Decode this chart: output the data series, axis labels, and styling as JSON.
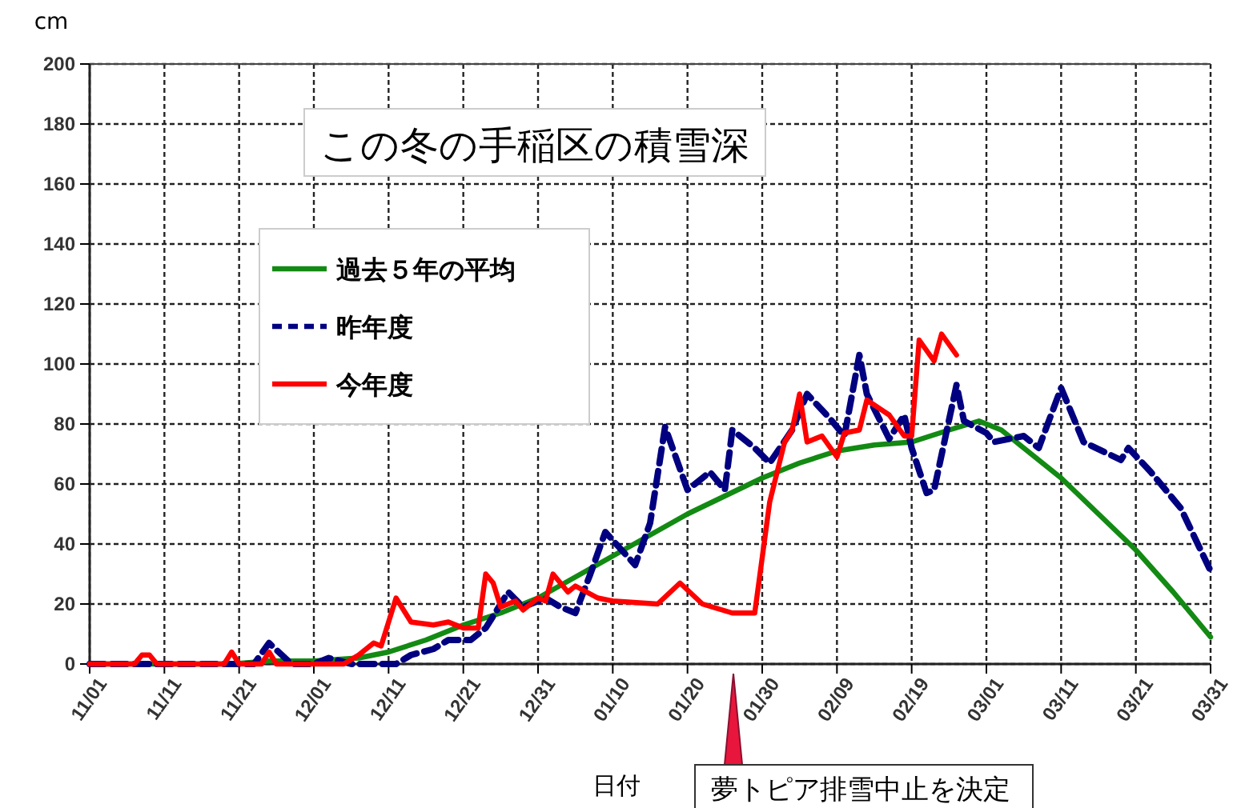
{
  "chart_data": {
    "type": "line",
    "title": "この冬の手稲区の積雪深",
    "xlabel": "日付",
    "ylabel": "cm",
    "annotations": [
      "夢トピア排雪中止を決定"
    ],
    "categories": [
      "11/01",
      null,
      null,
      null,
      null,
      null,
      null,
      null,
      null,
      null,
      "11/11",
      null,
      null,
      null,
      null,
      null,
      null,
      null,
      null,
      null,
      "11/21",
      null,
      null,
      null,
      null,
      null,
      null,
      null,
      null,
      null,
      "12/01",
      null,
      null,
      null,
      null,
      null,
      null,
      null,
      null,
      null,
      "12/11",
      null,
      null,
      null,
      null,
      null,
      null,
      null,
      null,
      null,
      "12/21",
      null,
      null,
      null,
      null,
      null,
      null,
      null,
      null,
      null,
      "12/31",
      null,
      null,
      null,
      null,
      null,
      null,
      null,
      null,
      null,
      "01/10",
      null,
      null,
      null,
      null,
      null,
      null,
      null,
      null,
      null,
      "01/20",
      null,
      null,
      null,
      null,
      null,
      null,
      null,
      null,
      null,
      "01/30",
      null,
      null,
      null,
      null,
      null,
      null,
      null,
      null,
      null,
      "02/09",
      null,
      null,
      null,
      null,
      null,
      null,
      null,
      null,
      null,
      "02/19",
      null,
      null,
      null,
      null,
      null,
      null,
      null,
      null,
      null,
      "03/01",
      null,
      null,
      null,
      null,
      null,
      null,
      null,
      null,
      null,
      "03/11",
      null,
      null,
      null,
      null,
      null,
      null,
      null,
      null,
      null,
      "03/21",
      null,
      null,
      null,
      null,
      null,
      null,
      null,
      null,
      null,
      "03/31"
    ],
    "ylim": [
      0,
      200
    ],
    "yticks": [
      0,
      20,
      40,
      60,
      80,
      100,
      120,
      140,
      160,
      180,
      200
    ],
    "grid": true,
    "legend": "top left",
    "series": [
      {
        "name": "過去５年の平均",
        "color": "#138a13",
        "line_style": "solid",
        "values": [
          0,
          null,
          null,
          null,
          null,
          null,
          null,
          null,
          null,
          null,
          null,
          null,
          null,
          null,
          null,
          null,
          null,
          null,
          null,
          0,
          null,
          null,
          null,
          null,
          1,
          null,
          null,
          null,
          null,
          null,
          1,
          null,
          null,
          null,
          null,
          null,
          2,
          null,
          null,
          null,
          4,
          null,
          null,
          null,
          null,
          8,
          null,
          null,
          null,
          null,
          13,
          null,
          null,
          null,
          null,
          17,
          null,
          null,
          null,
          null,
          22,
          null,
          null,
          null,
          null,
          29,
          null,
          null,
          null,
          null,
          36,
          null,
          null,
          null,
          null,
          43,
          null,
          null,
          null,
          null,
          50,
          null,
          null,
          null,
          null,
          56,
          null,
          null,
          null,
          null,
          62,
          null,
          null,
          null,
          null,
          67,
          null,
          null,
          null,
          null,
          71,
          null,
          null,
          null,
          null,
          73,
          null,
          null,
          null,
          null,
          74,
          null,
          null,
          null,
          null,
          78,
          null,
          null,
          null,
          81,
          null,
          null,
          78,
          null,
          null,
          72,
          null,
          null,
          null,
          null,
          62,
          null,
          null,
          null,
          null,
          50,
          null,
          null,
          null,
          null,
          38,
          null,
          null,
          null,
          null,
          24,
          null,
          null,
          null,
          null,
          9
        ]
      },
      {
        "name": "昨年度",
        "color": "#000080",
        "line_style": "dashed",
        "values": [
          0,
          null,
          null,
          null,
          null,
          null,
          null,
          null,
          null,
          null,
          null,
          null,
          null,
          null,
          null,
          null,
          null,
          null,
          null,
          null,
          null,
          null,
          0,
          null,
          7,
          null,
          null,
          0,
          null,
          null,
          0,
          null,
          2,
          null,
          null,
          0,
          null,
          null,
          null,
          null,
          null,
          0,
          null,
          3,
          null,
          null,
          5,
          null,
          8,
          null,
          null,
          8,
          null,
          12,
          null,
          null,
          24,
          null,
          19,
          null,
          null,
          22,
          null,
          19,
          null,
          17,
          null,
          30,
          null,
          44,
          null,
          null,
          null,
          33,
          null,
          47,
          null,
          79,
          null,
          null,
          58,
          null,
          null,
          64,
          null,
          58,
          78,
          null,
          null,
          72,
          null,
          67,
          null,
          null,
          78,
          null,
          90,
          null,
          null,
          82,
          null,
          76,
          null,
          103,
          90,
          null,
          null,
          75,
          null,
          83,
          72,
          null,
          57,
          58,
          null,
          null,
          93,
          81,
          null,
          null,
          77,
          74,
          null,
          null,
          null,
          76,
          null,
          72,
          null,
          null,
          92,
          null,
          null,
          74,
          null,
          null,
          null,
          null,
          68,
          72,
          null,
          null,
          64,
          null,
          null,
          null,
          52,
          null,
          null,
          null,
          31
        ]
      },
      {
        "name": "今年度",
        "color": "#ff0000",
        "line_style": "solid",
        "values": [
          0,
          null,
          null,
          null,
          null,
          null,
          0,
          3,
          3,
          0,
          null,
          null,
          null,
          null,
          null,
          null,
          null,
          null,
          0,
          4,
          0,
          null,
          null,
          0,
          4,
          0,
          null,
          null,
          null,
          null,
          null,
          null,
          null,
          null,
          0,
          null,
          3,
          null,
          7,
          6,
          null,
          22,
          null,
          14,
          null,
          null,
          13,
          null,
          14,
          null,
          12,
          null,
          12,
          30,
          27,
          19,
          null,
          21,
          18,
          null,
          22,
          21,
          30,
          null,
          24,
          26,
          null,
          null,
          22,
          null,
          21,
          null,
          null,
          null,
          null,
          null,
          20,
          null,
          null,
          27,
          null,
          null,
          20,
          null,
          null,
          null,
          17,
          null,
          null,
          17,
          null,
          54,
          null,
          74,
          78,
          90,
          74,
          null,
          76,
          null,
          69,
          77,
          null,
          78,
          88,
          null,
          null,
          83,
          null,
          76,
          76,
          108,
          null,
          101,
          110,
          null,
          103,
          null,
          null,
          null,
          null,
          null,
          null,
          null,
          null,
          null,
          null,
          null,
          null,
          null,
          null,
          null,
          null,
          null,
          null,
          null,
          null,
          null,
          null,
          null,
          null,
          null,
          null,
          null,
          null,
          null,
          null,
          null,
          null,
          null,
          null
        ]
      }
    ]
  }
}
